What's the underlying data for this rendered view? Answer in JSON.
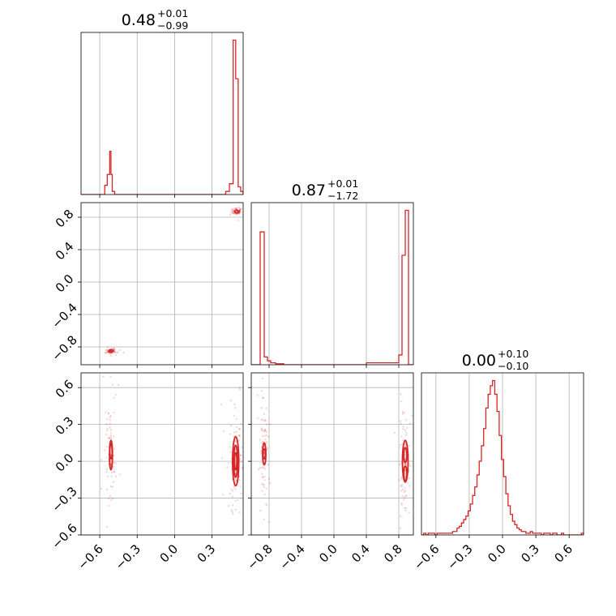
{
  "colors": {
    "accent": "#d62728",
    "grid": "#b0b0b0",
    "axis": "#000000",
    "background": "#ffffff"
  },
  "chart_data": [
    {
      "type": "histogram",
      "panel": "p0-marginal",
      "title": {
        "value": "0.48",
        "upper": "+0.01",
        "lower": "−0.99"
      },
      "xlim": [
        -0.75,
        0.55
      ],
      "ylim": [
        0,
        1
      ],
      "xticks": [
        -0.6,
        -0.3,
        0.0,
        0.3
      ],
      "xticklabels": [
        "−0.6",
        "−0.3",
        "0.0",
        "0.3"
      ],
      "show_tick_labels": false,
      "bin_edges": [
        -0.75,
        -0.56,
        -0.54,
        -0.52,
        -0.51,
        -0.5,
        -0.48,
        0.41,
        0.44,
        0.47,
        0.49,
        0.51,
        0.53,
        0.55
      ],
      "values": [
        0,
        0.06,
        0.13,
        0.28,
        0.13,
        0.02,
        0,
        0.02,
        0.07,
        1.0,
        0.75,
        0.05,
        0.02
      ]
    },
    {
      "type": "histogram",
      "panel": "p1-marginal",
      "title": {
        "value": "0.87",
        "upper": "+0.01",
        "lower": "−1.72"
      },
      "xlim": [
        -1.02,
        0.98
      ],
      "ylim": [
        0,
        1
      ],
      "xticks": [
        -0.8,
        -0.4,
        0.0,
        0.4,
        0.8
      ],
      "xticklabels": [
        "−0.8",
        "−0.4",
        "0.0",
        "0.4",
        "0.8"
      ],
      "show_tick_labels": false,
      "bin_edges": [
        -1.02,
        -0.91,
        -0.86,
        -0.82,
        -0.78,
        -0.72,
        -0.62,
        -0.4,
        0.0,
        0.4,
        0.8,
        0.84,
        0.88,
        0.92,
        0.98
      ],
      "values": [
        0,
        0.68,
        0.04,
        0.02,
        0.01,
        0.005,
        0,
        0,
        0,
        0.01,
        0.05,
        0.56,
        0.79,
        0
      ]
    },
    {
      "type": "histogram",
      "panel": "p2-marginal",
      "title": {
        "value": "0.00",
        "upper": "+0.10",
        "lower": "−0.10"
      },
      "xlim": [
        -0.73,
        0.73
      ],
      "ylim": [
        0,
        1
      ],
      "xticks": [
        -0.6,
        -0.3,
        0.0,
        0.3,
        0.6
      ],
      "xticklabels": [
        "−0.6",
        "−0.3",
        "0.0",
        "0.3",
        "0.6"
      ],
      "show_tick_labels": true,
      "bin_start": -0.73,
      "bin_width": 0.02,
      "values": [
        0.0,
        0.01,
        0.0,
        0.01,
        0.01,
        0.01,
        0.0,
        0.01,
        0.01,
        0.01,
        0.01,
        0.01,
        0.01,
        0.01,
        0.02,
        0.02,
        0.04,
        0.05,
        0.07,
        0.09,
        0.11,
        0.14,
        0.18,
        0.23,
        0.28,
        0.35,
        0.43,
        0.52,
        0.62,
        0.74,
        0.82,
        0.87,
        0.9,
        0.82,
        0.72,
        0.58,
        0.44,
        0.34,
        0.24,
        0.17,
        0.12,
        0.08,
        0.06,
        0.04,
        0.03,
        0.02,
        0.02,
        0.01,
        0.01,
        0.02,
        0.01,
        0.01,
        0.01,
        0.01,
        0.0,
        0.01,
        0.01,
        0.01,
        0.0,
        0.01,
        0.01,
        0.0,
        0.0,
        0.01,
        0.0,
        0.0,
        0.0,
        0.0,
        0.0,
        0.0,
        0.0,
        0.0,
        0.01
      ]
    },
    {
      "type": "scatter-density",
      "panel": "p0-vs-p1",
      "xlim": [
        -0.75,
        0.55
      ],
      "ylim": [
        -1.02,
        0.98
      ],
      "xticks": [
        -0.6,
        -0.3,
        0.0,
        0.3
      ],
      "yticks": [
        -0.8,
        -0.4,
        0.0,
        0.4,
        0.8
      ],
      "yticklabels": [
        "−0.8",
        "−0.4",
        "0.0",
        "0.4",
        "0.8"
      ],
      "show_x_tick_labels": false,
      "show_y_tick_labels": true,
      "clusters": [
        {
          "cx": -0.51,
          "cy": -0.85,
          "sx": 0.015,
          "sy": 0.012,
          "n": 70
        },
        {
          "cx": 0.5,
          "cy": 0.87,
          "sx": 0.015,
          "sy": 0.015,
          "n": 70
        }
      ],
      "contours": [
        {
          "cx": -0.51,
          "cy": -0.85,
          "rx": 0.018,
          "ry": 0.014
        },
        {
          "cx": 0.5,
          "cy": 0.87,
          "rx": 0.018,
          "ry": 0.016
        }
      ]
    },
    {
      "type": "scatter-density",
      "panel": "p0-vs-p2",
      "xlim": [
        -0.75,
        0.55
      ],
      "ylim": [
        -0.6,
        0.72
      ],
      "xticks": [
        -0.6,
        -0.3,
        0.0,
        0.3
      ],
      "xticklabels": [
        "−0.6",
        "−0.3",
        "0.0",
        "0.3"
      ],
      "yticks": [
        -0.6,
        -0.3,
        0.0,
        0.3,
        0.6
      ],
      "yticklabels": [
        "−0.6",
        "−0.3",
        "0.0",
        "0.3",
        "0.6"
      ],
      "show_x_tick_labels": true,
      "show_y_tick_labels": true,
      "clusters": [
        {
          "cx": -0.51,
          "cy": 0.05,
          "sx": 0.012,
          "sy": 0.12,
          "n": 90
        },
        {
          "cx": 0.49,
          "cy": 0.0,
          "sx": 0.02,
          "sy": 0.14,
          "n": 110
        }
      ],
      "contours": [
        {
          "cx": -0.51,
          "cy": 0.05,
          "rx": 0.012,
          "ry": 0.12
        },
        {
          "cx": -0.51,
          "cy": 0.08,
          "rx": 0.007,
          "ry": 0.06
        },
        {
          "cx": 0.49,
          "cy": 0.0,
          "rx": 0.025,
          "ry": 0.2
        },
        {
          "cx": 0.49,
          "cy": 0.0,
          "rx": 0.016,
          "ry": 0.13
        },
        {
          "cx": 0.49,
          "cy": 0.0,
          "rx": 0.009,
          "ry": 0.07
        }
      ]
    },
    {
      "type": "scatter-density",
      "panel": "p1-vs-p2",
      "xlim": [
        -1.02,
        0.98
      ],
      "ylim": [
        -0.6,
        0.72
      ],
      "xticks": [
        -0.8,
        -0.4,
        0.0,
        0.4,
        0.8
      ],
      "xticklabels": [
        "−0.8",
        "−0.4",
        "0.0",
        "0.4",
        "0.8"
      ],
      "yticks": [
        -0.6,
        -0.3,
        0.0,
        0.3,
        0.6
      ],
      "show_x_tick_labels": true,
      "show_y_tick_labels": false,
      "clusters": [
        {
          "cx": -0.86,
          "cy": 0.06,
          "sx": 0.015,
          "sy": 0.13,
          "n": 90
        },
        {
          "cx": 0.87,
          "cy": 0.0,
          "sx": 0.02,
          "sy": 0.15,
          "n": 110
        }
      ],
      "contours": [
        {
          "cx": -0.86,
          "cy": 0.06,
          "rx": 0.02,
          "ry": 0.09
        },
        {
          "cx": -0.86,
          "cy": 0.06,
          "rx": 0.01,
          "ry": 0.04
        },
        {
          "cx": 0.88,
          "cy": 0.0,
          "rx": 0.035,
          "ry": 0.17
        },
        {
          "cx": 0.88,
          "cy": 0.05,
          "rx": 0.02,
          "ry": 0.06
        },
        {
          "cx": 0.88,
          "cy": -0.1,
          "rx": 0.02,
          "ry": 0.06
        }
      ]
    }
  ]
}
